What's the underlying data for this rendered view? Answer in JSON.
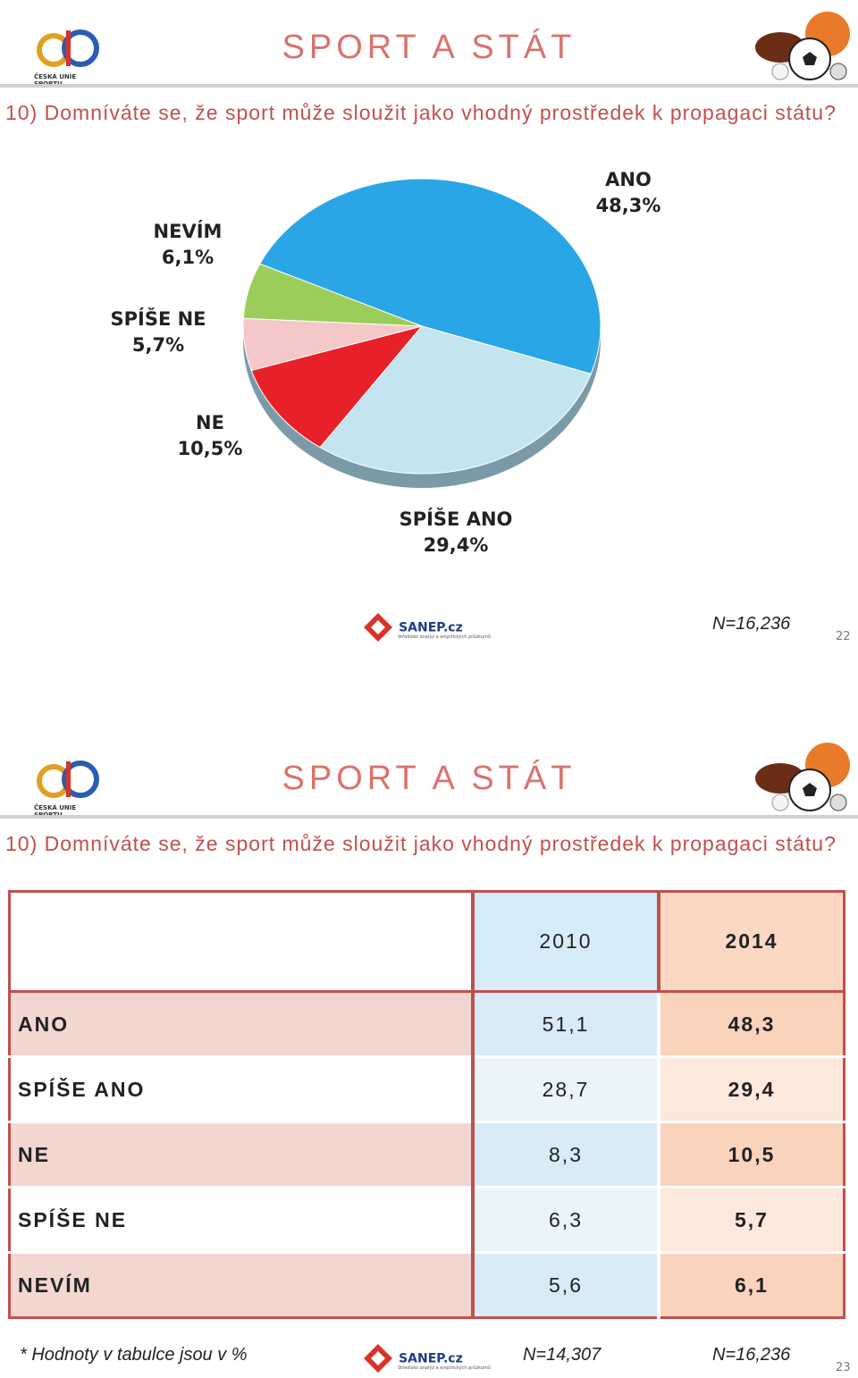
{
  "slides": [
    {
      "title": "SPORT A STÁT",
      "question": "10) Domníváte se, že sport může sloužit jako vhodný prostředek k propagaci státu?",
      "logo": "ČESKÁ UNIE SPORTU",
      "sanep": "SANEP.cz",
      "sanep_sub": "Středisko analýz a empirických průzkumů",
      "n": "N=16,236",
      "page": "22"
    },
    {
      "title": "SPORT A STÁT",
      "question": "10) Domníváte se, že sport může sloužit jako vhodný prostředek k propagaci státu?",
      "logo": "ČESKÁ UNIE SPORTU",
      "sanep": "SANEP.cz",
      "sanep_sub": "Středisko analýz a empirických průzkumů",
      "note": "* Hodnoty v tabulce jsou v %",
      "n_2010": "N=14,307",
      "n_2014": "N=16,236",
      "page": "23"
    }
  ],
  "chart_data": {
    "type": "pie",
    "categories": [
      "ANO",
      "SPÍŠE ANO",
      "NE",
      "SPÍŠE NE",
      "NEVÍM"
    ],
    "values": [
      48.3,
      29.4,
      10.5,
      5.7,
      6.1
    ],
    "value_labels": [
      "48,3%",
      "29,4%",
      "10,5%",
      "5,7%",
      "6,1%"
    ],
    "colors": [
      "#2aa6e6",
      "#c4e5ef",
      "#e8202a",
      "#f4c8c8",
      "#9ccd5b"
    ]
  },
  "table": {
    "columns": [
      "2010",
      "2014"
    ],
    "rows": [
      {
        "label": "ANO",
        "values": [
          "51,1",
          "48,3"
        ]
      },
      {
        "label": "SPÍŠE ANO",
        "values": [
          "28,7",
          "29,4"
        ]
      },
      {
        "label": "NE",
        "values": [
          "8,3",
          "10,5"
        ]
      },
      {
        "label": "SPÍŠE NE",
        "values": [
          "6,3",
          "5,7"
        ]
      },
      {
        "label": "NEVÍM",
        "values": [
          "5,6",
          "6,1"
        ]
      }
    ]
  }
}
